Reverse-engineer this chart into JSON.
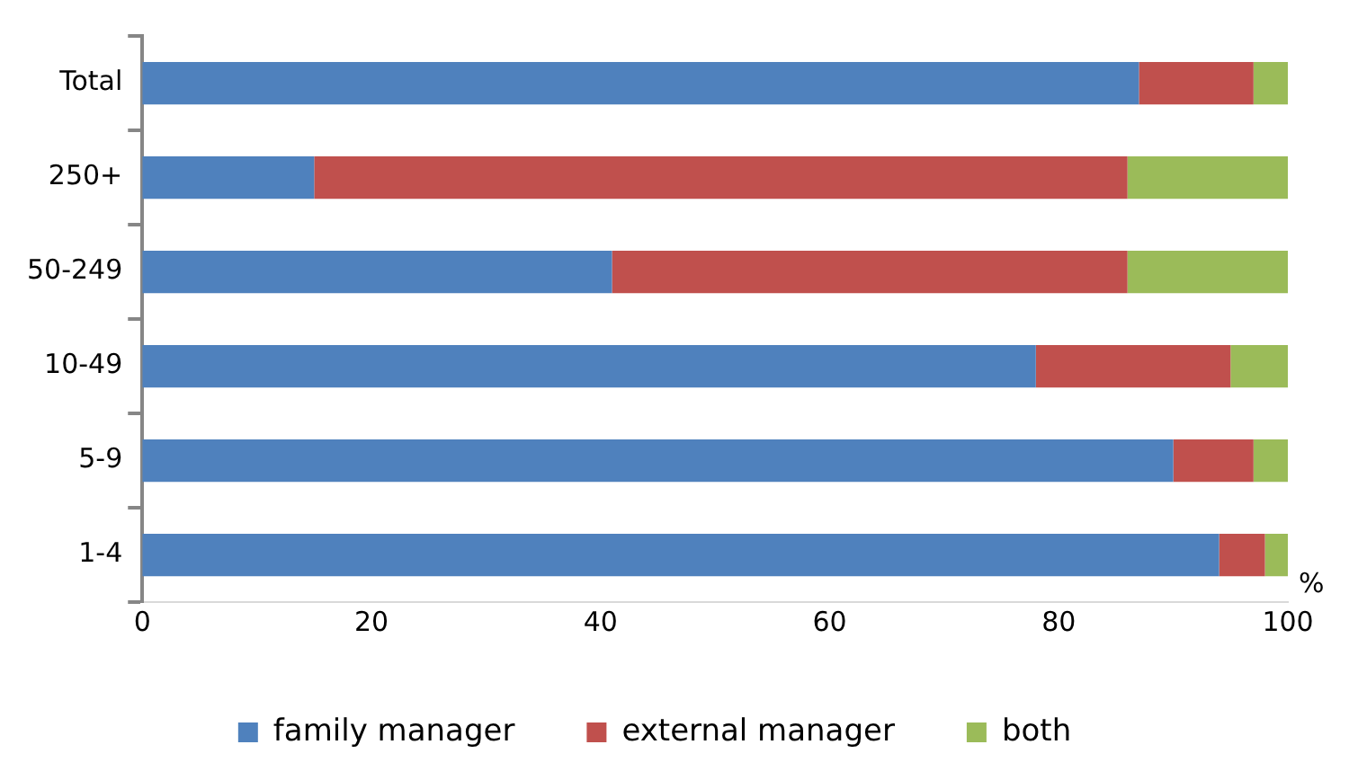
{
  "chart_data": {
    "type": "bar",
    "orientation": "horizontal",
    "stacked": true,
    "categories": [
      "Total",
      "250+",
      "50-249",
      "10-49",
      "5-9",
      "1-4"
    ],
    "series": [
      {
        "name": "family manager",
        "color": "#4f81bd",
        "values": [
          87,
          15,
          41,
          78,
          90,
          94
        ]
      },
      {
        "name": "external manager",
        "color": "#c0504d",
        "values": [
          10,
          71,
          45,
          17,
          7,
          4
        ]
      },
      {
        "name": "both",
        "color": "#9bbb59",
        "values": [
          3,
          14,
          14,
          5,
          3,
          2
        ]
      }
    ],
    "xlabel": "%",
    "xlim": [
      0,
      100
    ],
    "xticks": [
      0,
      20,
      40,
      60,
      80,
      100
    ],
    "grid": false,
    "legend": "bottom"
  }
}
